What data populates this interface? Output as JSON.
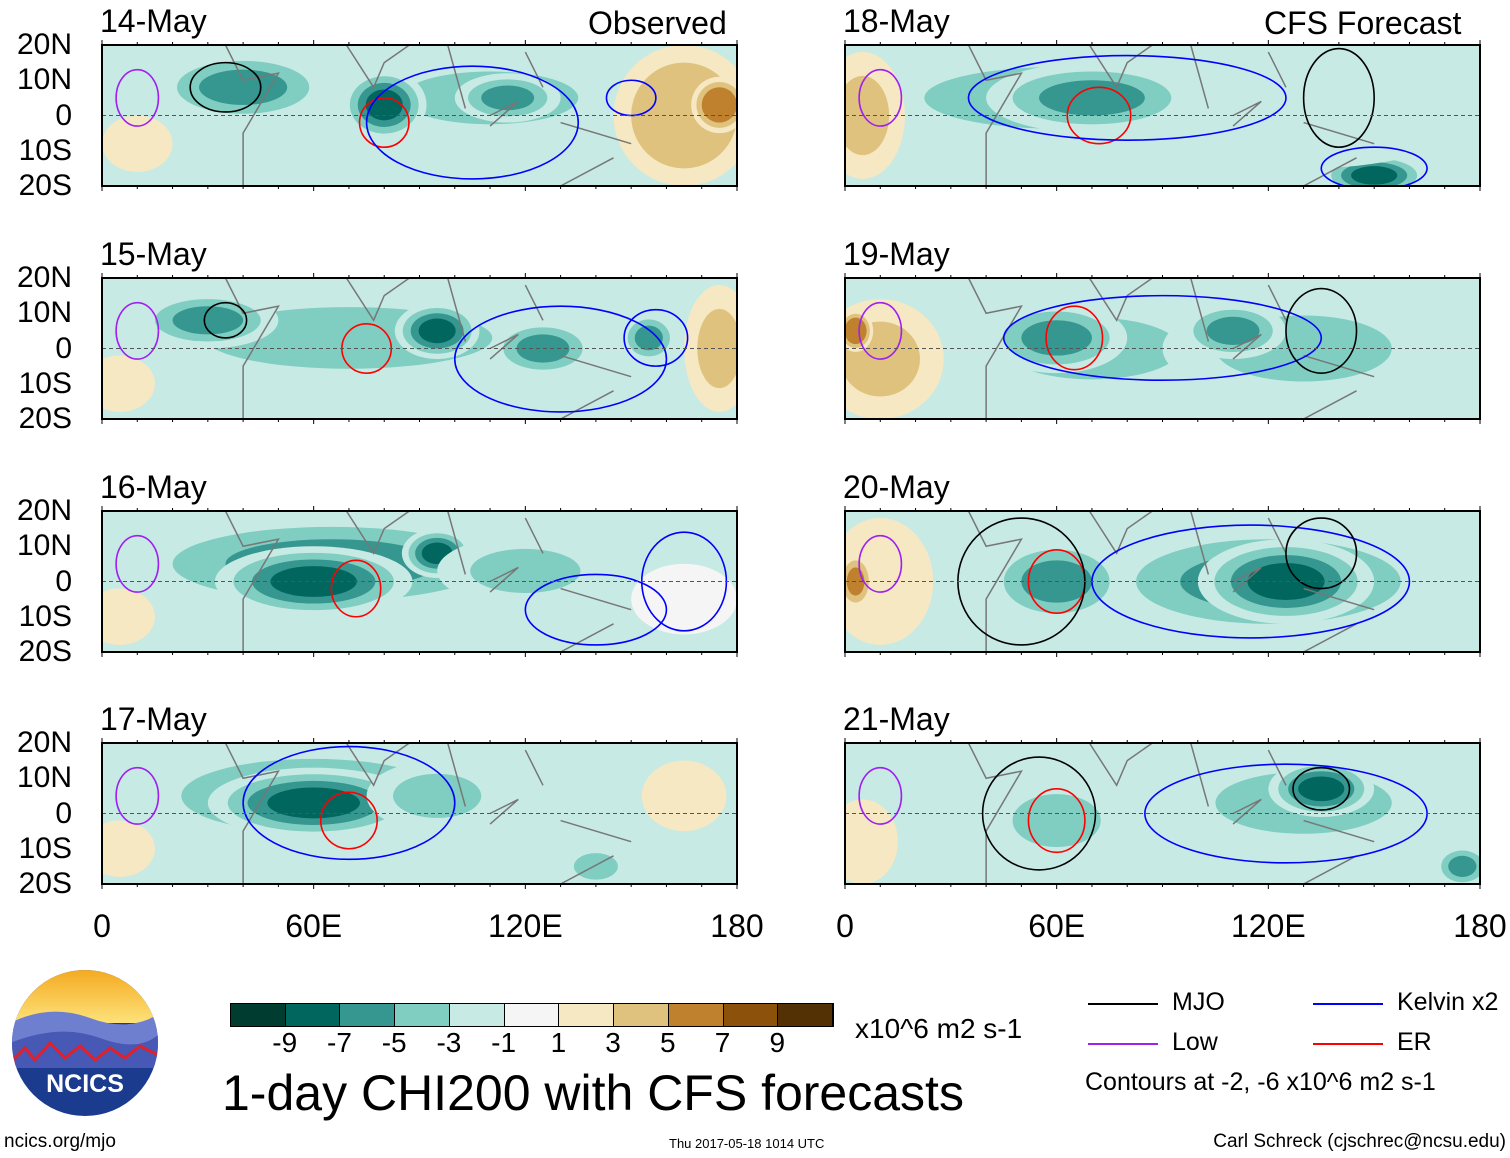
{
  "chart_data": {
    "type": "heatmap",
    "title": "1-day CHI200 with CFS forecasts",
    "units": "x10^6 m2 s-1",
    "column_titles": [
      "Observed",
      "CFS Forecast"
    ],
    "lon_range": [
      0,
      180
    ],
    "lat_range": [
      -20,
      20
    ],
    "x_ticks": [
      "0",
      "60E",
      "120E",
      "180"
    ],
    "y_ticks": [
      "20N",
      "10N",
      "0",
      "10S",
      "20S"
    ],
    "colorbar": {
      "levels": [
        "-9",
        "-7",
        "-5",
        "-3",
        "-1",
        "1",
        "3",
        "5",
        "7",
        "9"
      ],
      "colors": [
        "#003c30",
        "#01665e",
        "#35978f",
        "#80cdc1",
        "#c7eae5",
        "#f5f5f5",
        "#f6e8c3",
        "#dfc27d",
        "#bf812d",
        "#8c510a",
        "#543005"
      ]
    },
    "legend": [
      {
        "label": "MJO",
        "color": "#000000"
      },
      {
        "label": "Kelvin x2",
        "color": "#0000ff"
      },
      {
        "label": "Low",
        "color": "#a020f0"
      },
      {
        "label": "ER",
        "color": "#ff0000"
      }
    ],
    "contour_note": "Contours at -2, -6 x10^6 m2 s-1",
    "panels": [
      {
        "date": "14-May",
        "col": 0,
        "row": 0,
        "anoms": [
          [
            70,
            0,
            70,
            15,
            -2
          ],
          [
            110,
            5,
            40,
            12,
            -3
          ],
          [
            40,
            8,
            25,
            10,
            -5
          ],
          [
            80,
            3,
            12,
            10,
            -8
          ],
          [
            115,
            5,
            15,
            7,
            -6
          ],
          [
            165,
            0,
            20,
            20,
            5
          ],
          [
            175,
            3,
            8,
            8,
            7
          ],
          [
            10,
            -8,
            10,
            8,
            2
          ]
        ],
        "contours": [
          [
            "MJO",
            35,
            8,
            10,
            7
          ],
          [
            "ER",
            80,
            -2,
            7,
            7
          ],
          [
            "Kelvin",
            150,
            5,
            7,
            5
          ],
          [
            "Kelvin",
            105,
            -2,
            30,
            16
          ],
          [
            "Low",
            10,
            5,
            6,
            8
          ]
        ]
      },
      {
        "date": "15-May",
        "col": 0,
        "row": 0,
        "anoms": [
          [
            70,
            3,
            65,
            14,
            -4
          ],
          [
            30,
            8,
            20,
            8,
            -6
          ],
          [
            95,
            5,
            12,
            8,
            -7
          ],
          [
            125,
            0,
            15,
            8,
            -6
          ],
          [
            155,
            3,
            8,
            7,
            -6
          ],
          [
            175,
            0,
            10,
            18,
            4
          ],
          [
            5,
            -10,
            10,
            8,
            2
          ]
        ],
        "contours": [
          [
            "MJO",
            35,
            8,
            6,
            5
          ],
          [
            "ER",
            75,
            0,
            7,
            7
          ],
          [
            "Kelvin",
            157,
            3,
            9,
            8
          ],
          [
            "Kelvin",
            130,
            -3,
            30,
            15
          ],
          [
            "Low",
            10,
            5,
            6,
            8
          ]
        ]
      },
      {
        "date": "16-May",
        "col": 0,
        "row": 0,
        "anoms": [
          [
            65,
            5,
            60,
            14,
            -5
          ],
          [
            60,
            0,
            28,
            10,
            -8
          ],
          [
            95,
            8,
            10,
            7,
            -7
          ],
          [
            120,
            3,
            25,
            10,
            -3
          ],
          [
            165,
            -5,
            15,
            10,
            1
          ],
          [
            5,
            -10,
            10,
            8,
            2
          ]
        ],
        "contours": [
          [
            "ER",
            72,
            -2,
            7,
            8
          ],
          [
            "Kelvin",
            165,
            0,
            12,
            14
          ],
          [
            "Kelvin",
            140,
            -8,
            20,
            10
          ],
          [
            "Low",
            10,
            5,
            6,
            8
          ]
        ]
      },
      {
        "date": "17-May",
        "col": 0,
        "row": 0,
        "anoms": [
          [
            60,
            5,
            50,
            14,
            -5
          ],
          [
            60,
            3,
            30,
            10,
            -8
          ],
          [
            95,
            5,
            20,
            10,
            -3
          ],
          [
            165,
            5,
            12,
            10,
            3
          ],
          [
            140,
            -15,
            10,
            6,
            -4
          ],
          [
            5,
            -10,
            10,
            8,
            2
          ]
        ],
        "contours": [
          [
            "ER",
            70,
            -2,
            8,
            8
          ],
          [
            "Kelvin",
            70,
            3,
            30,
            16
          ],
          [
            "Low",
            10,
            5,
            6,
            8
          ]
        ]
      },
      {
        "date": "18-May",
        "col": 1,
        "row": 0,
        "anoms": [
          [
            60,
            5,
            60,
            14,
            -4
          ],
          [
            70,
            5,
            30,
            10,
            -6
          ],
          [
            5,
            0,
            12,
            18,
            4
          ],
          [
            150,
            -17,
            15,
            6,
            -8
          ],
          [
            130,
            -5,
            40,
            10,
            -2
          ]
        ],
        "contours": [
          [
            "ER",
            72,
            0,
            9,
            8
          ],
          [
            "Kelvin",
            80,
            5,
            45,
            12
          ],
          [
            "Kelvin",
            150,
            -15,
            15,
            6
          ],
          [
            "Low",
            10,
            5,
            6,
            8
          ],
          [
            "MJO",
            140,
            5,
            10,
            14
          ]
        ]
      },
      {
        "date": "19-May",
        "col": 1,
        "row": 0,
        "anoms": [
          [
            70,
            0,
            40,
            14,
            -3
          ],
          [
            60,
            3,
            20,
            10,
            -5
          ],
          [
            130,
            0,
            40,
            15,
            -4
          ],
          [
            110,
            5,
            15,
            8,
            -5
          ],
          [
            10,
            -3,
            18,
            17,
            4
          ],
          [
            3,
            5,
            5,
            6,
            7
          ]
        ],
        "contours": [
          [
            "ER",
            65,
            3,
            8,
            9
          ],
          [
            "Kelvin",
            90,
            3,
            45,
            12
          ],
          [
            "Low",
            10,
            5,
            6,
            8
          ],
          [
            "MJO",
            135,
            5,
            10,
            12
          ]
        ]
      },
      {
        "date": "20-May",
        "col": 1,
        "row": 0,
        "anoms": [
          [
            120,
            0,
            50,
            16,
            -5
          ],
          [
            125,
            0,
            25,
            12,
            -8
          ],
          [
            60,
            0,
            20,
            12,
            -5
          ],
          [
            10,
            0,
            15,
            18,
            3
          ],
          [
            3,
            0,
            5,
            8,
            6
          ]
        ],
        "contours": [
          [
            "ER",
            60,
            0,
            8,
            9
          ],
          [
            "Kelvin",
            115,
            0,
            45,
            16
          ],
          [
            "MJO",
            50,
            0,
            18,
            18
          ],
          [
            "MJO",
            135,
            8,
            10,
            10
          ],
          [
            "Low",
            10,
            5,
            6,
            8
          ]
        ]
      },
      {
        "date": "21-May",
        "col": 1,
        "row": 0,
        "anoms": [
          [
            130,
            3,
            40,
            14,
            -4
          ],
          [
            135,
            7,
            15,
            8,
            -7
          ],
          [
            60,
            -2,
            20,
            12,
            -3
          ],
          [
            5,
            -8,
            10,
            12,
            3
          ],
          [
            175,
            -15,
            8,
            6,
            -6
          ]
        ],
        "contours": [
          [
            "ER",
            60,
            -2,
            8,
            9
          ],
          [
            "MJO",
            135,
            7,
            8,
            6
          ],
          [
            "MJO",
            55,
            0,
            16,
            16
          ],
          [
            "Kelvin",
            125,
            0,
            40,
            14
          ],
          [
            "Low",
            10,
            5,
            6,
            8
          ]
        ]
      }
    ]
  },
  "logo": {
    "text": "NCICS"
  },
  "footer": {
    "url": "ncics.org/mjo",
    "timestamp": "Thu 2017-05-18 1014 UTC",
    "author": "Carl Schreck (cjschrec@ncsu.edu)"
  }
}
